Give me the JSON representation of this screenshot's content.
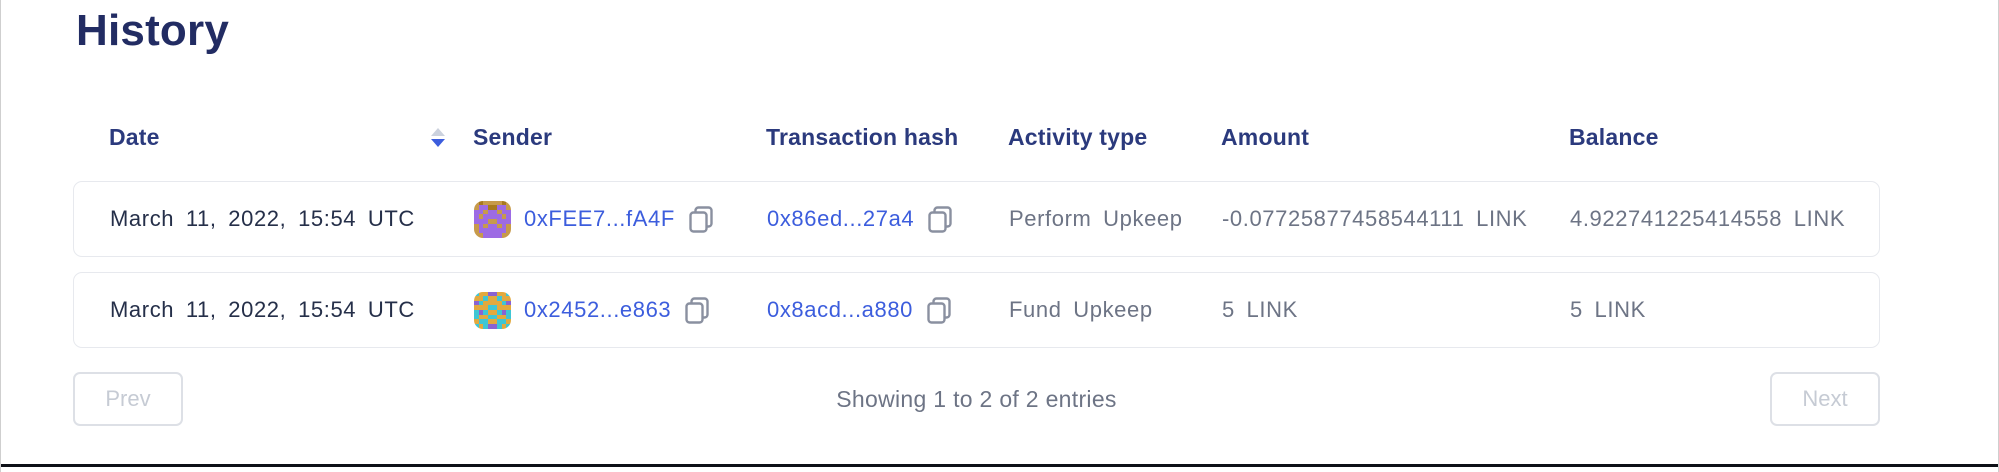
{
  "page": {
    "title": "History"
  },
  "table": {
    "columns": {
      "date": "Date",
      "sender": "Sender",
      "tx_hash": "Transaction hash",
      "activity_type": "Activity type",
      "amount": "Amount",
      "balance": "Balance"
    },
    "rows": [
      {
        "date": "March 11, 2022, 15:54 UTC",
        "sender": "0xFEE7...fA4F",
        "tx_hash": "0x86ed...27a4",
        "activity_type": "Perform Upkeep",
        "amount": "-0.07725877458544111 LINK",
        "balance": "4.922741225414558 LINK"
      },
      {
        "date": "March 11, 2022, 15:54 UTC",
        "sender": "0x2452...e863",
        "tx_hash": "0x8acd...a880",
        "activity_type": "Fund Upkeep",
        "amount": "5 LINK",
        "balance": "5 LINK"
      }
    ],
    "sort": {
      "column": "Date",
      "direction": "desc"
    }
  },
  "identicons": [
    {
      "palette": [
        "#c79a4b",
        "#9d6be4",
        "#a8791f"
      ],
      "grid": [
        [
          0,
          2,
          0,
          0,
          0,
          0,
          2,
          0
        ],
        [
          0,
          1,
          1,
          2,
          2,
          1,
          1,
          0
        ],
        [
          1,
          1,
          0,
          1,
          1,
          0,
          1,
          1
        ],
        [
          1,
          0,
          1,
          1,
          1,
          1,
          0,
          1
        ],
        [
          1,
          1,
          1,
          0,
          0,
          1,
          1,
          1
        ],
        [
          0,
          1,
          0,
          1,
          1,
          0,
          1,
          0
        ],
        [
          0,
          1,
          1,
          1,
          1,
          1,
          1,
          0
        ],
        [
          0,
          0,
          1,
          1,
          1,
          1,
          0,
          0
        ]
      ]
    },
    {
      "palette": [
        "#e2a93e",
        "#3fc6d4",
        "#8a63d2"
      ],
      "grid": [
        [
          1,
          0,
          0,
          2,
          2,
          0,
          0,
          1
        ],
        [
          0,
          0,
          1,
          0,
          0,
          1,
          0,
          0
        ],
        [
          2,
          1,
          0,
          0,
          0,
          0,
          1,
          2
        ],
        [
          0,
          0,
          0,
          1,
          1,
          0,
          0,
          0
        ],
        [
          1,
          2,
          1,
          0,
          0,
          1,
          2,
          1
        ],
        [
          1,
          0,
          0,
          1,
          1,
          0,
          0,
          1
        ],
        [
          0,
          1,
          1,
          0,
          0,
          1,
          1,
          0
        ],
        [
          1,
          0,
          1,
          2,
          2,
          1,
          0,
          1
        ]
      ]
    }
  ],
  "pagination": {
    "prev_label": "Prev",
    "next_label": "Next",
    "status": "Showing 1 to 2 of 2 entries"
  },
  "icons": {
    "copy": "copy-icon",
    "sort": "sort-carets-icon"
  },
  "colors": {
    "title_navy": "#222c63",
    "header_navy": "#2b3a7d",
    "link_blue": "#3c5ddd",
    "cell_dark": "#252f49",
    "cell_gray": "#6d7485",
    "card_border": "#e7e9ee",
    "disabled_text": "#c6cbd4",
    "disabled_border": "#dde0e6",
    "sort_inactive": "#ccd2de",
    "bottom_rule": "#0d1017"
  }
}
